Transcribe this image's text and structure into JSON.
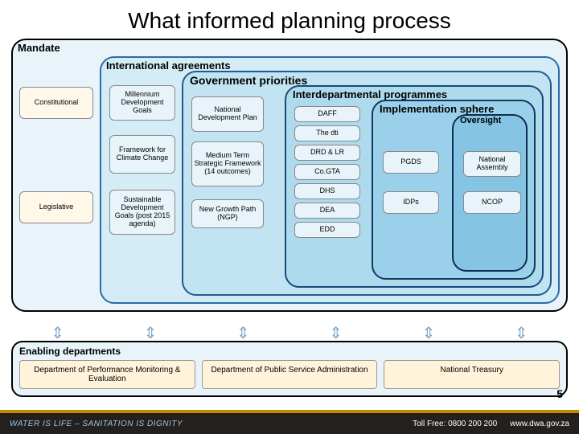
{
  "title": "What informed planning process",
  "layers": {
    "mandate": {
      "label": "Mandate",
      "bg": "#e8f4fa",
      "border": "#000000"
    },
    "intl": {
      "label": "International agreements",
      "bg": "#d4ecf6",
      "border": "#2a6ca8"
    },
    "gov": {
      "label": "Government priorities",
      "bg": "#c2e3f2",
      "border": "#1f5a90"
    },
    "inter": {
      "label": "Interdepartmental programmes",
      "bg": "#aedaee",
      "border": "#184978"
    },
    "impl": {
      "label": "Implementation sphere",
      "bg": "#9ad0e9",
      "border": "#123a63"
    },
    "over": {
      "label": "Oversight",
      "bg": "#85c5e3",
      "border": "#0d2d4f"
    }
  },
  "mandate_items": {
    "constitutional": "Constitutional",
    "legislative": "Legislative"
  },
  "intl_items": {
    "mdg": "Millennium Development Goals",
    "fcc": "Framework for Climate Change",
    "sdg": "Sustainable Development Goals (post 2015 agenda)"
  },
  "gov_items": {
    "ndp": "National Development Plan",
    "mtsf": "Medium Term Strategic Framework (14 outcomes)",
    "ngp": "New Growth Path (NGP)"
  },
  "dept_items": {
    "daff": "DAFF",
    "dti": "The dti",
    "drd": "DRD & LR",
    "cogta": "Co.GTA",
    "dhs": "DHS",
    "dea": "DEA",
    "edd": "EDD"
  },
  "sphere_items": {
    "pgds": "PGDS",
    "idps": "IDPs"
  },
  "oversight_items": {
    "na": "National Assembly",
    "ncop": "NCOP"
  },
  "enabling": {
    "title": "Enabling departments",
    "items": [
      "Department of Performance Monitoring & Evaluation",
      "Department of Public Service Administration",
      "National Treasury"
    ]
  },
  "page_number": "5",
  "footer": {
    "slogan": "WATER IS LIFE – SANITATION IS DIGNITY",
    "tollfree": "Toll Free: 0800 200 200",
    "url": "www.dwa.gov.za"
  },
  "style": {
    "mini_box_bg": "#e8f4fa",
    "mini_box_border": "#888888",
    "mandate_box_bg": "#fff7e8",
    "enabling_box_bg": "#fff3d9",
    "title_fontsize": 28,
    "label_fontsize": 13,
    "mini_fontsize": 9,
    "arrow_color": "#7fa8c9",
    "footer_bg": "#23201d",
    "footer_accent": "#c08a00"
  }
}
